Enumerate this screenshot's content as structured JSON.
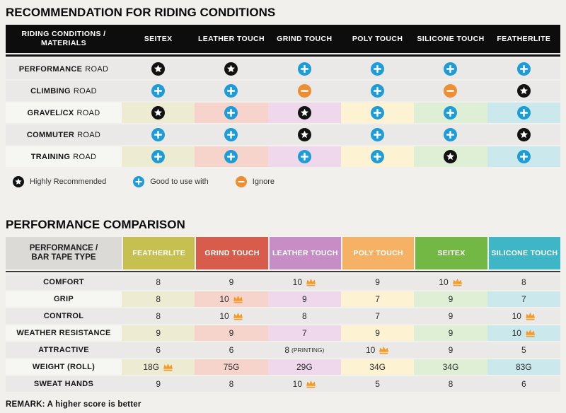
{
  "chart_data": [
    {
      "type": "table",
      "title": "RECOMMENDATION FOR RIDING CONDITIONS",
      "corner_label": "RIDING CONDITIONS /\nMATERIALS",
      "columns": [
        "SEITEX",
        "LEATHER TOUCH",
        "GRIND TOUCH",
        "POLY TOUCH",
        "SILICONE TOUCH",
        "FEATHERLITE"
      ],
      "column_tints": [
        "#EDEBD2",
        "#F6D4CB",
        "#EFD8EC",
        "#FDF3D3",
        "#DFEFD5",
        "#CBE8ED"
      ],
      "rows": [
        {
          "condition": "PERFORMANCE",
          "suffix": "ROAD",
          "tinted": false,
          "ratings": [
            "star",
            "star",
            "plus",
            "plus",
            "plus",
            "plus"
          ]
        },
        {
          "condition": "CLIMBING",
          "suffix": "ROAD",
          "tinted": false,
          "ratings": [
            "plus",
            "plus",
            "minus",
            "plus",
            "minus",
            "star"
          ]
        },
        {
          "condition": "GRAVEL/CX",
          "suffix": "ROAD",
          "tinted": true,
          "ratings": [
            "star",
            "plus",
            "star",
            "plus",
            "plus",
            "plus"
          ]
        },
        {
          "condition": "COMMUTER",
          "suffix": "ROAD",
          "tinted": false,
          "ratings": [
            "plus",
            "plus",
            "star",
            "plus",
            "plus",
            "star"
          ]
        },
        {
          "condition": "TRAINING",
          "suffix": "ROAD",
          "tinted": true,
          "ratings": [
            "plus",
            "plus",
            "plus",
            "plus",
            "star",
            "plus"
          ]
        }
      ],
      "legend": [
        {
          "icon": "star",
          "label": "Highly Recommended"
        },
        {
          "icon": "plus",
          "label": "Good to use with"
        },
        {
          "icon": "minus",
          "label": "Ignore"
        }
      ]
    },
    {
      "type": "table",
      "title": "PERFORMANCE COMPARISON",
      "corner_label": "PERFORMANCE /\nBAR TAPE TYPE",
      "columns": [
        {
          "label": "FEATHERLITE",
          "color": "#C6C051",
          "tint": "#EDEBD2"
        },
        {
          "label": "GRIND TOUCH",
          "color": "#D85C4C",
          "tint": "#F6D4CB"
        },
        {
          "label": "LEATHER TOUCH",
          "color": "#C68EC5",
          "tint": "#EFD8EC"
        },
        {
          "label": "POLY TOUCH",
          "color": "#F5B164",
          "tint": "#FDF3D3"
        },
        {
          "label": "SEITEX",
          "color": "#73B845",
          "tint": "#DFEFD5"
        },
        {
          "label": "SILICONE TOUCH",
          "color": "#3FB6C6",
          "tint": "#CBE8ED"
        }
      ],
      "rows": [
        {
          "metric": "COMFORT",
          "tinted": false,
          "values": [
            {
              "v": "8"
            },
            {
              "v": "9"
            },
            {
              "v": "10",
              "crown": true
            },
            {
              "v": "9"
            },
            {
              "v": "10",
              "crown": true
            },
            {
              "v": "8"
            }
          ]
        },
        {
          "metric": "GRIP",
          "tinted": true,
          "values": [
            {
              "v": "8"
            },
            {
              "v": "10",
              "crown": true
            },
            {
              "v": "9"
            },
            {
              "v": "7"
            },
            {
              "v": "9"
            },
            {
              "v": "7"
            }
          ]
        },
        {
          "metric": "CONTROL",
          "tinted": false,
          "values": [
            {
              "v": "8"
            },
            {
              "v": "10",
              "crown": true
            },
            {
              "v": "8"
            },
            {
              "v": "7"
            },
            {
              "v": "9"
            },
            {
              "v": "10",
              "crown": true
            }
          ]
        },
        {
          "metric": "WEATHER RESISTANCE",
          "tinted": true,
          "values": [
            {
              "v": "9"
            },
            {
              "v": "9"
            },
            {
              "v": "7"
            },
            {
              "v": "9"
            },
            {
              "v": "9"
            },
            {
              "v": "10",
              "crown": true
            }
          ]
        },
        {
          "metric": "ATTRACTIVE",
          "tinted": false,
          "values": [
            {
              "v": "6"
            },
            {
              "v": "6"
            },
            {
              "v": "8",
              "note": "(PRINTING)"
            },
            {
              "v": "10",
              "crown": true
            },
            {
              "v": "9"
            },
            {
              "v": "5"
            }
          ]
        },
        {
          "metric": "WEIGHT (ROLL)",
          "tinted": true,
          "values": [
            {
              "v": "18G",
              "crown": true
            },
            {
              "v": "75G"
            },
            {
              "v": "29G"
            },
            {
              "v": "34G"
            },
            {
              "v": "34G"
            },
            {
              "v": "83G"
            }
          ]
        },
        {
          "metric": "SWEAT HANDS",
          "tinted": false,
          "values": [
            {
              "v": "9"
            },
            {
              "v": "8"
            },
            {
              "v": "10",
              "crown": true
            },
            {
              "v": "5"
            },
            {
              "v": "8"
            },
            {
              "v": "6"
            }
          ]
        }
      ],
      "remark": "REMARK: A higher score is better"
    }
  ],
  "icon_colors": {
    "star": "#121212",
    "plus": "#1E9CD7",
    "minus": "#EE8E31",
    "crown": "#F59B2C"
  }
}
